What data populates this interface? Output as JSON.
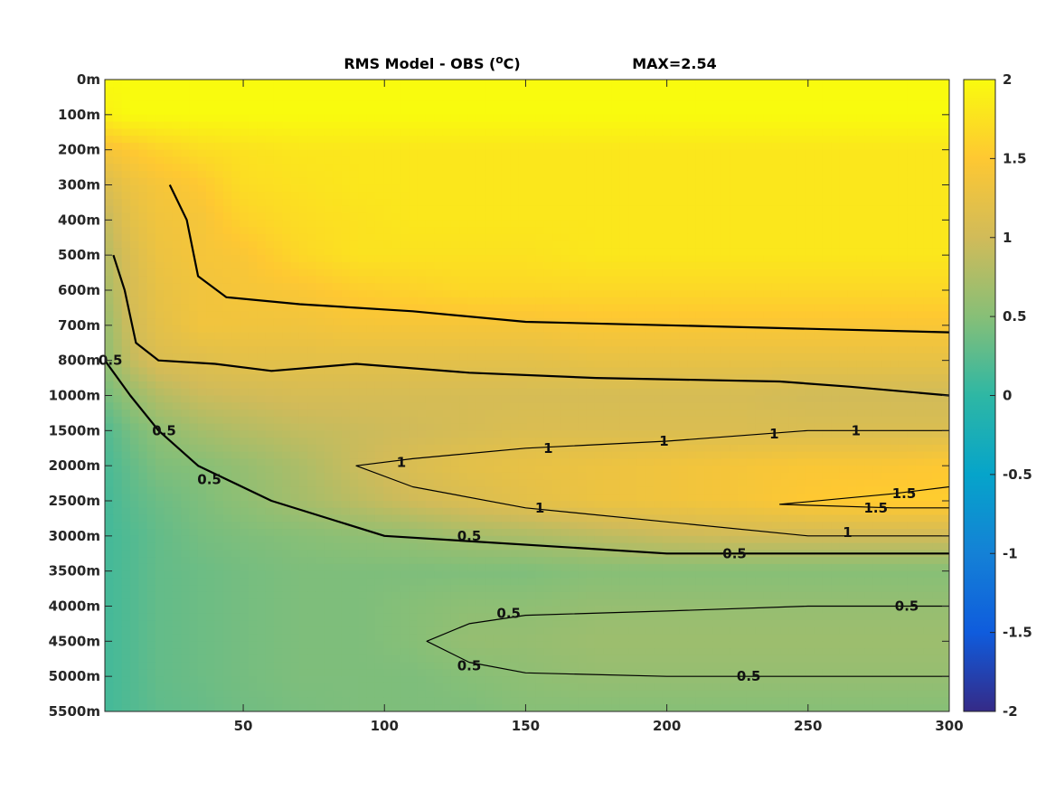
{
  "chart_data": {
    "type": "heatmap",
    "title": "RMS Model - OBS (°C)",
    "title_parts": {
      "main": "RMS Model - OBS (",
      "sup": "o",
      "unit": "C)"
    },
    "annotation": "MAX=2.54",
    "xlabel": "",
    "ylabel": "",
    "xlim": [
      1,
      300
    ],
    "x_ticks": [
      50,
      100,
      150,
      200,
      250,
      300
    ],
    "y_tick_labels": [
      "0m",
      "100m",
      "200m",
      "300m",
      "400m",
      "500m",
      "600m",
      "700m",
      "800m",
      "1000m",
      "1500m",
      "2000m",
      "2500m",
      "3000m",
      "3500m",
      "4000m",
      "4500m",
      "5000m",
      "5500m"
    ],
    "colorbar": {
      "min": -2,
      "max": 2,
      "ticks": [
        "2",
        "1.5",
        "1",
        "0.5",
        "0",
        "-0.5",
        "-1",
        "-1.5",
        "-2"
      ],
      "colormap": "parula",
      "stops": [
        "#352a87",
        "#0f5cdd",
        "#1481d6",
        "#06a4ca",
        "#2eb7a4",
        "#87bf77",
        "#d1bb59",
        "#fec832",
        "#f9fb0e"
      ]
    },
    "grid": false,
    "legend": "none",
    "field": {
      "depth_levels": [
        "0m",
        "100m",
        "200m",
        "300m",
        "400m",
        "500m",
        "600m",
        "700m",
        "800m",
        "1000m",
        "1500m",
        "2000m",
        "2500m",
        "3000m",
        "3500m",
        "4000m",
        "4500m",
        "5000m",
        "5500m"
      ],
      "x": [
        1,
        10,
        20,
        35,
        50,
        70,
        90,
        110,
        130,
        150,
        175,
        200,
        225,
        250,
        275,
        300
      ],
      "values": [
        [
          2.0,
          2.0,
          2.0,
          2.0,
          2.0,
          2.0,
          2.0,
          2.0,
          2.0,
          2.0,
          2.0,
          2.0,
          2.0,
          2.0,
          2.0,
          2.0
        ],
        [
          1.9,
          2.0,
          2.0,
          2.0,
          2.0,
          2.0,
          2.0,
          2.0,
          2.0,
          2.0,
          2.0,
          2.0,
          2.0,
          2.0,
          2.0,
          2.0
        ],
        [
          1.4,
          1.5,
          1.6,
          1.7,
          1.75,
          1.8,
          1.8,
          1.8,
          1.8,
          1.8,
          1.8,
          1.8,
          1.8,
          1.8,
          1.8,
          1.8
        ],
        [
          1.1,
          1.3,
          1.4,
          1.5,
          1.7,
          1.75,
          1.8,
          1.8,
          1.8,
          1.8,
          1.8,
          1.8,
          1.8,
          1.8,
          1.8,
          1.8
        ],
        [
          0.9,
          1.2,
          1.35,
          1.4,
          1.6,
          1.7,
          1.75,
          1.8,
          1.8,
          1.8,
          1.8,
          1.8,
          1.8,
          1.8,
          1.8,
          1.8
        ],
        [
          0.8,
          1.1,
          1.3,
          1.4,
          1.45,
          1.65,
          1.75,
          1.75,
          1.75,
          1.75,
          1.8,
          1.8,
          1.8,
          1.8,
          1.8,
          1.8
        ],
        [
          0.7,
          1.05,
          1.25,
          1.35,
          1.4,
          1.45,
          1.55,
          1.6,
          1.65,
          1.65,
          1.65,
          1.65,
          1.65,
          1.65,
          1.65,
          1.65
        ],
        [
          0.6,
          1.0,
          1.2,
          1.35,
          1.35,
          1.35,
          1.4,
          1.4,
          1.4,
          1.4,
          1.45,
          1.45,
          1.45,
          1.45,
          1.45,
          1.45
        ],
        [
          0.55,
          0.9,
          1.1,
          1.15,
          1.2,
          1.2,
          1.2,
          1.2,
          1.2,
          1.2,
          1.25,
          1.25,
          1.25,
          1.25,
          1.25,
          1.25
        ],
        [
          0.4,
          0.6,
          0.8,
          0.95,
          1.0,
          1.05,
          1.05,
          1.05,
          1.05,
          1.05,
          1.05,
          1.05,
          1.05,
          1.0,
          1.0,
          1.0
        ],
        [
          0.2,
          0.4,
          0.55,
          0.7,
          0.8,
          0.9,
          0.95,
          1.0,
          1.05,
          1.1,
          1.1,
          1.1,
          1.1,
          1.1,
          1.1,
          1.1
        ],
        [
          0.15,
          0.3,
          0.45,
          0.5,
          0.6,
          0.75,
          0.95,
          1.1,
          1.2,
          1.25,
          1.3,
          1.35,
          1.4,
          1.45,
          1.45,
          1.5
        ],
        [
          0.12,
          0.25,
          0.35,
          0.45,
          0.55,
          0.7,
          0.85,
          1.0,
          1.1,
          1.2,
          1.3,
          1.35,
          1.4,
          1.5,
          1.55,
          1.55
        ],
        [
          0.12,
          0.2,
          0.3,
          0.4,
          0.45,
          0.5,
          0.55,
          0.6,
          0.7,
          0.75,
          0.85,
          0.95,
          1.0,
          1.0,
          1.0,
          1.0
        ],
        [
          0.12,
          0.2,
          0.3,
          0.35,
          0.4,
          0.45,
          0.45,
          0.45,
          0.45,
          0.45,
          0.5,
          0.5,
          0.5,
          0.5,
          0.5,
          0.5
        ],
        [
          0.12,
          0.2,
          0.3,
          0.35,
          0.4,
          0.45,
          0.45,
          0.5,
          0.55,
          0.55,
          0.6,
          0.6,
          0.6,
          0.6,
          0.6,
          0.6
        ],
        [
          0.12,
          0.2,
          0.3,
          0.35,
          0.4,
          0.45,
          0.45,
          0.5,
          0.6,
          0.6,
          0.65,
          0.65,
          0.65,
          0.65,
          0.65,
          0.65
        ],
        [
          0.12,
          0.2,
          0.3,
          0.35,
          0.4,
          0.45,
          0.45,
          0.45,
          0.5,
          0.55,
          0.6,
          0.6,
          0.6,
          0.6,
          0.6,
          0.6
        ],
        [
          0.12,
          0.2,
          0.28,
          0.32,
          0.38,
          0.42,
          0.45,
          0.45,
          0.45,
          0.5,
          0.5,
          0.5,
          0.5,
          0.5,
          0.5,
          0.5
        ]
      ]
    },
    "contours": [
      {
        "level": "0.5",
        "points": [
          [
            1,
            "800m"
          ],
          [
            10,
            "1000m"
          ],
          [
            20,
            "1500m"
          ],
          [
            34,
            "2000m"
          ],
          [
            60,
            "2500m"
          ],
          [
            100,
            "3000m"
          ],
          [
            200,
            "3250m"
          ],
          [
            300,
            "3250m"
          ]
        ],
        "labels": [
          [
            3,
            "800m"
          ],
          [
            22,
            "1500m"
          ],
          [
            38,
            "2200m"
          ],
          [
            130,
            "3000m"
          ],
          [
            224,
            "3250m"
          ]
        ]
      },
      {
        "level": "1",
        "points": [
          [
            4,
            "500m"
          ],
          [
            8,
            "600m"
          ],
          [
            12,
            "750m"
          ],
          [
            20,
            "800m"
          ],
          [
            40,
            "820m"
          ],
          [
            60,
            "860m"
          ],
          [
            90,
            "820m"
          ],
          [
            130,
            "870m"
          ],
          [
            175,
            "900m"
          ],
          [
            240,
            "920m"
          ],
          [
            265,
            "950m"
          ],
          [
            300,
            "1000m"
          ]
        ],
        "labels": []
      },
      {
        "level": "1.5",
        "points": [
          [
            24,
            "300m"
          ],
          [
            30,
            "400m"
          ],
          [
            34,
            "560m"
          ],
          [
            44,
            "620m"
          ],
          [
            70,
            "640m"
          ],
          [
            110,
            "660m"
          ],
          [
            150,
            "690m"
          ],
          [
            200,
            "700m"
          ],
          [
            250,
            "710m"
          ],
          [
            300,
            "720m"
          ]
        ],
        "labels": []
      },
      {
        "level": "1",
        "points": [
          [
            300,
            "1500m"
          ],
          [
            250,
            "1500m"
          ],
          [
            200,
            "1650m"
          ],
          [
            150,
            "1750m"
          ],
          [
            110,
            "1900m"
          ],
          [
            90,
            "2000m"
          ],
          [
            110,
            "2300m"
          ],
          [
            150,
            "2600m"
          ],
          [
            200,
            "2800m"
          ],
          [
            250,
            "3000m"
          ],
          [
            300,
            "3000m"
          ]
        ],
        "labels": [
          [
            106,
            "1950m"
          ],
          [
            158,
            "1750m"
          ],
          [
            199,
            "1650m"
          ],
          [
            238,
            "1550m"
          ],
          [
            267,
            "1500m"
          ],
          [
            155,
            "2600m"
          ],
          [
            264,
            "2950m"
          ]
        ]
      },
      {
        "level": "1.5",
        "points": [
          [
            300,
            "2300m"
          ],
          [
            280,
            "2400m"
          ],
          [
            240,
            "2550m"
          ],
          [
            280,
            "2600m"
          ],
          [
            300,
            "2600m"
          ]
        ],
        "labels": [
          [
            284,
            "2400m"
          ],
          [
            274,
            "2600m"
          ]
        ]
      },
      {
        "level": "0.5",
        "points": [
          [
            300,
            "4000m"
          ],
          [
            250,
            "4000m"
          ],
          [
            200,
            "4070m"
          ],
          [
            150,
            "4130m"
          ],
          [
            130,
            "4250m"
          ],
          [
            115,
            "4500m"
          ],
          [
            130,
            "4800m"
          ],
          [
            150,
            "4950m"
          ],
          [
            200,
            "5000m"
          ],
          [
            250,
            "5000m"
          ],
          [
            300,
            "5000m"
          ]
        ],
        "labels": [
          [
            144,
            "4100m"
          ],
          [
            285,
            "4000m"
          ],
          [
            130,
            "4850m"
          ],
          [
            229,
            "5000m"
          ]
        ]
      }
    ],
    "contour_label_text": {
      "a": "0.5",
      "b": "1",
      "c": "1.5"
    }
  }
}
